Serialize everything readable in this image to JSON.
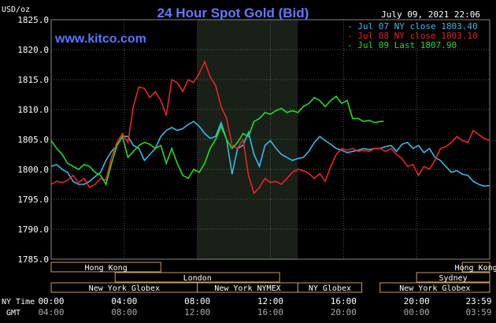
{
  "chart_data": {
    "type": "line",
    "title": "24 Hour Spot Gold (Bid)",
    "timestamp": "July 09, 2021 22:06",
    "source": "www.kitco.com",
    "ylabel": "USD/oz",
    "ylim": [
      1785.0,
      1825.0
    ],
    "y_ticks": [
      "1825.0",
      "1820.0",
      "1815.0",
      "1810.0",
      "1805.0",
      "1800.0",
      "1795.0",
      "1790.0",
      "1785.0"
    ],
    "ny_time_label": "NY Time",
    "gmt_label": "GMT",
    "x_ticks_ny": [
      "00:00",
      "04:00",
      "08:00",
      "12:00",
      "16:00",
      "20:00",
      "23:59"
    ],
    "x_ticks_gmt": [
      "04:00",
      "08:00",
      "12:00",
      "16:00",
      "20:00",
      "00:00",
      "03:59"
    ],
    "grid": true,
    "legend_position": "top-right",
    "legend": [
      {
        "label": "Jul 07 NY close 1803.40",
        "color": "#33bbee"
      },
      {
        "label": "Jul 08 NY close 1803.10",
        "color": "#ee2222"
      },
      {
        "label": "Jul 09 Last 1807.90",
        "color": "#22dd22"
      }
    ],
    "highlight_band_hours": [
      8.0,
      13.5
    ],
    "sessions": [
      {
        "label": "Hong Kong",
        "row": 0,
        "ranges": [
          [
            0.0,
            6.0
          ],
          [
            22.5,
            24.0
          ]
        ]
      },
      {
        "label": "London",
        "row": 1,
        "ranges": [
          [
            3.5,
            12.5
          ]
        ]
      },
      {
        "label": "Sydney",
        "row": 1,
        "ranges": [
          [
            20.0,
            24.0
          ]
        ]
      },
      {
        "label": "New York Globex",
        "row": 2,
        "ranges": [
          [
            0.0,
            8.0
          ],
          [
            18.0,
            24.0
          ]
        ]
      },
      {
        "label": "New York NYMEX",
        "row": 2,
        "ranges": [
          [
            8.0,
            13.5
          ]
        ]
      },
      {
        "label": "NY Globex",
        "row": 2,
        "ranges": [
          [
            13.5,
            17.0
          ]
        ]
      }
    ],
    "series": [
      {
        "name": "Jul 07",
        "color": "#33bbee",
        "x": [
          0,
          0.3,
          0.6,
          0.9,
          1.2,
          1.5,
          1.8,
          2.1,
          2.4,
          2.7,
          3.0,
          3.3,
          3.6,
          3.9,
          4.2,
          4.5,
          4.8,
          5.1,
          5.4,
          5.7,
          6.0,
          6.3,
          6.6,
          6.9,
          7.2,
          7.5,
          7.8,
          8.1,
          8.4,
          8.7,
          9.0,
          9.3,
          9.6,
          9.9,
          10.2,
          10.5,
          10.8,
          11.1,
          11.4,
          11.7,
          12.0,
          12.3,
          12.6,
          12.9,
          13.2,
          13.5,
          13.8,
          14.1,
          14.4,
          14.7,
          15.0,
          15.3,
          15.6,
          15.9,
          16.2,
          16.5,
          16.8,
          17.1,
          17.4,
          17.7,
          18.0,
          18.3,
          18.6,
          18.9,
          19.2,
          19.5,
          19.8,
          20.1,
          20.4,
          20.7,
          21.0,
          21.3,
          21.6,
          21.9,
          22.2,
          22.5,
          22.8,
          23.1,
          23.4,
          23.7,
          24.0
        ],
        "y": [
          1800.5,
          1800.8,
          1800.0,
          1799.5,
          1798.0,
          1797.5,
          1797.5,
          1798.0,
          1798.8,
          1799.5,
          1801.5,
          1803.0,
          1804.0,
          1805.5,
          1805.5,
          1804.0,
          1803.5,
          1801.5,
          1802.5,
          1803.5,
          1805.5,
          1806.5,
          1807.0,
          1806.5,
          1806.8,
          1807.5,
          1808.0,
          1807.2,
          1806.0,
          1805.2,
          1805.5,
          1807.8,
          1805.0,
          1799.2,
          1803.5,
          1804.0,
          1806.2,
          1802.5,
          1800.5,
          1804.0,
          1804.8,
          1803.5,
          1802.5,
          1802.0,
          1801.5,
          1801.8,
          1802.0,
          1803.0,
          1804.5,
          1805.5,
          1804.8,
          1804.2,
          1803.5,
          1803.2,
          1802.8,
          1803.0,
          1803.2,
          1803.5,
          1803.3,
          1803.5,
          1803.5,
          1803.8,
          1804.0,
          1803.0,
          1804.2,
          1804.5,
          1803.5,
          1804.0,
          1802.8,
          1803.5,
          1802.0,
          1801.5,
          1800.5,
          1799.5,
          1799.8,
          1799.2,
          1799.0,
          1798.0,
          1797.5,
          1797.2,
          1797.3
        ]
      },
      {
        "name": "Jul 08",
        "color": "#ee2222",
        "x": [
          0,
          0.3,
          0.6,
          0.9,
          1.2,
          1.5,
          1.8,
          2.1,
          2.4,
          2.7,
          3.0,
          3.3,
          3.6,
          3.9,
          4.2,
          4.5,
          4.8,
          5.1,
          5.4,
          5.7,
          6.0,
          6.3,
          6.6,
          6.9,
          7.2,
          7.5,
          7.8,
          8.1,
          8.4,
          8.7,
          9.0,
          9.3,
          9.6,
          9.9,
          10.2,
          10.5,
          10.8,
          11.1,
          11.4,
          11.7,
          12.0,
          12.3,
          12.6,
          12.9,
          13.2,
          13.5,
          13.8,
          14.1,
          14.4,
          14.7,
          15.0,
          15.3,
          15.6,
          15.9,
          16.2,
          16.5,
          16.8,
          17.1,
          17.4,
          17.7,
          18.0,
          18.3,
          18.6,
          18.9,
          19.2,
          19.5,
          19.8,
          20.1,
          20.4,
          20.7,
          21.0,
          21.3,
          21.6,
          21.9,
          22.2,
          22.5,
          22.8,
          23.1,
          23.4,
          23.7,
          24.0
        ],
        "y": [
          1797.5,
          1798.0,
          1797.8,
          1798.2,
          1799.0,
          1797.8,
          1798.5,
          1797.0,
          1797.5,
          1798.5,
          1798.2,
          1802.0,
          1804.5,
          1806.0,
          1804.5,
          1810.5,
          1813.8,
          1813.5,
          1812.0,
          1813.0,
          1811.5,
          1809.0,
          1815.0,
          1814.5,
          1813.0,
          1815.0,
          1814.5,
          1816.0,
          1818.0,
          1815.5,
          1814.0,
          1810.5,
          1808.5,
          1804.0,
          1803.5,
          1805.0,
          1799.0,
          1796.0,
          1797.0,
          1798.5,
          1797.8,
          1798.0,
          1797.5,
          1798.5,
          1799.5,
          1800.0,
          1799.8,
          1799.3,
          1798.5,
          1799.3,
          1798.0,
          1800.5,
          1802.5,
          1803.5,
          1803.2,
          1803.5,
          1803.0,
          1803.2,
          1803.0,
          1803.5,
          1803.5,
          1803.0,
          1803.5,
          1802.5,
          1801.8,
          1800.5,
          1800.8,
          1799.0,
          1800.5,
          1800.0,
          1801.5,
          1803.5,
          1803.8,
          1804.5,
          1805.5,
          1804.8,
          1804.5,
          1806.5,
          1805.8,
          1805.2,
          1804.8
        ]
      },
      {
        "name": "Jul 09",
        "color": "#22dd22",
        "x": [
          0,
          0.3,
          0.6,
          0.9,
          1.2,
          1.5,
          1.8,
          2.1,
          2.4,
          2.7,
          3.0,
          3.3,
          3.6,
          3.9,
          4.2,
          4.5,
          4.8,
          5.1,
          5.4,
          5.7,
          6.0,
          6.3,
          6.6,
          6.9,
          7.2,
          7.5,
          7.8,
          8.1,
          8.4,
          8.7,
          9.0,
          9.3,
          9.6,
          9.9,
          10.2,
          10.5,
          10.8,
          11.1,
          11.4,
          11.7,
          12.0,
          12.3,
          12.6,
          12.9,
          13.2,
          13.5,
          13.8,
          14.1,
          14.4,
          14.7,
          15.0,
          15.3,
          15.6,
          15.9,
          16.2,
          16.5,
          16.8,
          17.1,
          17.4,
          17.7,
          18.0,
          18.2
        ],
        "y": [
          1804.8,
          1803.5,
          1802.5,
          1801.0,
          1800.5,
          1800.0,
          1800.8,
          1800.5,
          1799.5,
          1799.0,
          1797.5,
          1801.0,
          1804.0,
          1805.5,
          1802.0,
          1803.0,
          1804.0,
          1804.5,
          1804.2,
          1803.5,
          1804.0,
          1801.0,
          1803.5,
          1801.0,
          1799.0,
          1798.5,
          1800.0,
          1799.5,
          1801.0,
          1803.5,
          1805.0,
          1807.2,
          1805.0,
          1803.5,
          1804.5,
          1806.0,
          1805.5,
          1808.0,
          1808.5,
          1809.5,
          1809.2,
          1809.8,
          1810.2,
          1809.5,
          1809.8,
          1809.5,
          1810.5,
          1811.0,
          1812.0,
          1811.5,
          1810.5,
          1811.5,
          1812.2,
          1811.0,
          1811.5,
          1808.5,
          1808.5,
          1808.0,
          1808.2,
          1807.8,
          1808.0,
          1808.0
        ]
      }
    ]
  }
}
